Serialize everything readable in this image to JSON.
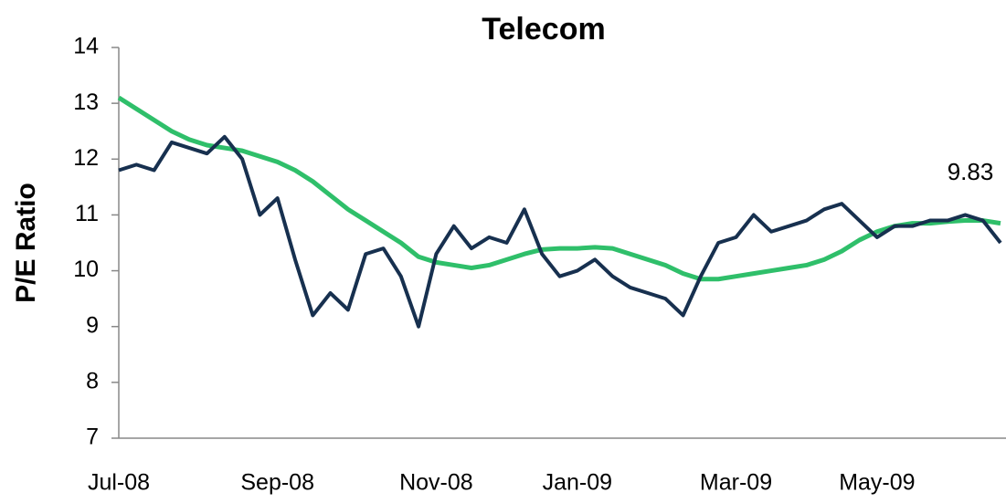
{
  "chart_data": {
    "type": "line",
    "title": "Telecom",
    "y_label": "P/E Ratio",
    "annotations": [
      "9.83"
    ],
    "categories": [
      "Jul-08",
      null,
      null,
      null,
      null,
      null,
      null,
      null,
      null,
      "Sep-08",
      null,
      null,
      null,
      null,
      null,
      null,
      null,
      null,
      "Nov-08",
      null,
      null,
      null,
      null,
      null,
      null,
      null,
      "Jan-09",
      null,
      null,
      null,
      null,
      null,
      null,
      null,
      null,
      "Mar-09",
      null,
      null,
      null,
      null,
      null,
      null,
      null,
      "May-09",
      null,
      null,
      null,
      null,
      null,
      null,
      null
    ],
    "series": [
      {
        "color": "#17304f",
        "values": [
          11.8,
          11.9,
          11.8,
          12.3,
          12.2,
          12.1,
          12.4,
          12.0,
          11.0,
          11.3,
          10.2,
          9.2,
          9.6,
          9.3,
          10.3,
          10.4,
          9.9,
          9.0,
          10.3,
          10.8,
          10.4,
          10.6,
          10.5,
          11.1,
          10.3,
          9.9,
          10.0,
          10.2,
          9.9,
          9.7,
          9.6,
          9.5,
          9.2,
          9.9,
          10.5,
          10.6,
          11.0,
          10.7,
          10.8,
          10.9,
          11.1,
          11.2,
          10.9,
          10.6,
          10.8,
          10.8,
          10.9,
          10.9,
          11.0,
          10.9,
          10.5
        ]
      },
      {
        "color": "#2fbf6a",
        "values": [
          13.1,
          12.9,
          12.7,
          12.5,
          12.35,
          12.25,
          12.2,
          12.15,
          12.05,
          11.95,
          11.8,
          11.6,
          11.35,
          11.1,
          10.9,
          10.7,
          10.5,
          10.25,
          10.15,
          10.1,
          10.05,
          10.1,
          10.2,
          10.3,
          10.38,
          10.4,
          10.4,
          10.42,
          10.4,
          10.3,
          10.2,
          10.1,
          9.95,
          9.85,
          9.85,
          9.9,
          9.95,
          10.0,
          10.05,
          10.1,
          10.2,
          10.35,
          10.55,
          10.7,
          10.8,
          10.85,
          10.85,
          10.88,
          10.9,
          10.9,
          10.85
        ]
      }
    ],
    "ylim": [
      7,
      14
    ],
    "yticks": [
      7,
      8,
      9,
      10,
      11,
      12,
      13,
      14
    ],
    "grid": false
  }
}
